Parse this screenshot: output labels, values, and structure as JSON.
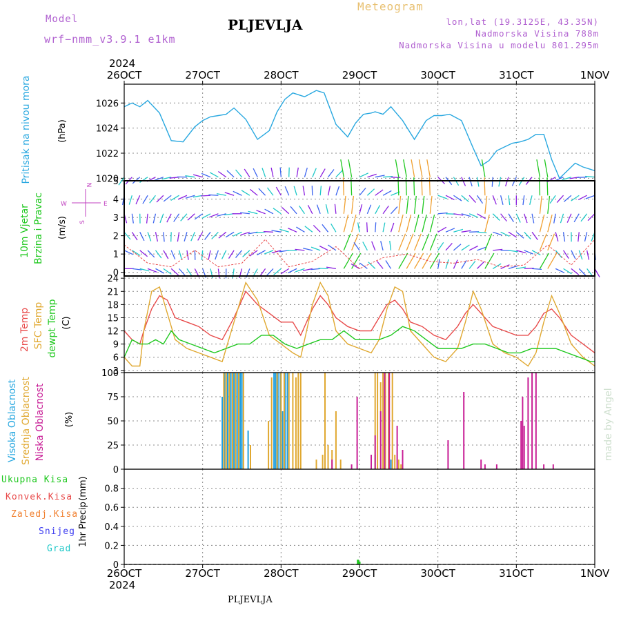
{
  "header": {
    "model_label": "Model",
    "model_name": "wrf−nmm_v3.9.1  e1km",
    "station": "PLJEVLJA",
    "product": "Meteogram",
    "lonlat": "lon,lat (19.3125E, 43.35N)",
    "elevation": "Nadmorska Visina 788m",
    "model_elevation": "Nadmorska Visina u modelu 801.295m"
  },
  "footer": {
    "station": "PLJEVLJA",
    "watermark": "made by Angel"
  },
  "colors": {
    "pressure": "#29a8e0",
    "t2m": "#e84a4a",
    "sfc": "#e0a830",
    "dew": "#1ec81e",
    "high_cloud": "#1e9ee0",
    "mid_cloud": "#e0a830",
    "low_cloud": "#c81e96",
    "total_precip": "#1ec81e",
    "conv": "#e84a4a",
    "frozen": "#f08030",
    "snow": "#3c3cf0",
    "hail": "#1ec8c8",
    "wind_label": "#1ec81e",
    "wind_label2": "#1ec81e",
    "wind_dir": "#c040c0",
    "model_text": "#b060d0"
  },
  "chart_data": {
    "time_axis": {
      "top_year": "2024",
      "bottom_year": "2024",
      "labels": [
        "26OCT",
        "27OCT",
        "28OCT",
        "29OCT",
        "30OCT",
        "31OCT",
        "1NOV"
      ]
    },
    "pressure": {
      "type": "line",
      "ylabel_name": "Pritisak na nivou mora",
      "ylabel_unit": "(hPa)",
      "ylim": [
        1019.8,
        1027.5
      ],
      "yticks": [
        1020,
        1022,
        1024,
        1026
      ],
      "x": [
        0,
        0.1,
        0.2,
        0.3,
        0.45,
        0.6,
        0.75,
        0.9,
        1.0,
        1.1,
        1.2,
        1.3,
        1.4,
        1.55,
        1.7,
        1.85,
        1.95,
        2.05,
        2.15,
        2.3,
        2.45,
        2.55,
        2.7,
        2.85,
        2.95,
        3.05,
        3.15,
        3.2,
        3.3,
        3.4,
        3.55,
        3.7,
        3.85,
        3.95,
        4.05,
        4.15,
        4.3,
        4.45,
        4.55,
        4.65,
        4.75,
        4.85,
        4.95,
        5.05,
        5.15,
        5.25,
        5.35,
        5.45,
        5.55,
        5.65,
        5.75,
        5.85,
        5.95,
        6.0
      ],
      "y": [
        1025.7,
        1026.0,
        1025.7,
        1026.2,
        1025.2,
        1023.0,
        1022.9,
        1024.1,
        1024.6,
        1024.9,
        1025.0,
        1025.1,
        1025.6,
        1024.7,
        1023.1,
        1023.8,
        1025.3,
        1026.3,
        1026.8,
        1026.5,
        1027.0,
        1026.8,
        1024.3,
        1023.3,
        1024.4,
        1025.1,
        1025.2,
        1025.3,
        1025.1,
        1025.7,
        1024.6,
        1023.1,
        1024.6,
        1025.0,
        1025.0,
        1025.1,
        1024.6,
        1022.4,
        1021.0,
        1021.4,
        1022.2,
        1022.5,
        1022.8,
        1022.9,
        1023.1,
        1023.5,
        1023.5,
        1021.5,
        1020.0,
        1020.6,
        1021.2,
        1020.9,
        1020.7,
        1020.6
      ]
    },
    "wind": {
      "type": "other",
      "ylabel_name": "10m Vjetar",
      "ylabel_name2": "Brzina i Pravac",
      "ylabel_unit": "(m/s)",
      "direction_key": "N",
      "direction_key_w": "W",
      "direction_key_e": "E",
      "direction_key_s": "S",
      "ylim": [
        -0.2,
        5
      ],
      "yticks": [
        0,
        1,
        2,
        3,
        4,
        5
      ],
      "speed_x": [
        0,
        0.3,
        0.6,
        0.9,
        1.2,
        1.5,
        1.8,
        2.1,
        2.4,
        2.7,
        3.0,
        3.3,
        3.6,
        3.9,
        4.2,
        4.5,
        4.8,
        5.1,
        5.4,
        5.7,
        6.0
      ],
      "speed_y": [
        1.5,
        0.5,
        0.3,
        1.2,
        0.3,
        0.5,
        1.8,
        0.3,
        0.6,
        1.4,
        0.2,
        0.8,
        1.0,
        0.6,
        0.5,
        0.7,
        0.3,
        0.4,
        1.5,
        0.4,
        1.8
      ]
    },
    "temperature": {
      "type": "line",
      "ylabel_name": "2m Temp",
      "ylabel_name2": "SFC Temp",
      "ylabel_name3": "dewpt Temp",
      "ylabel_unit": "(C)",
      "ylim": [
        2.5,
        24.5
      ],
      "yticks": [
        3,
        6,
        9,
        12,
        15,
        18,
        21,
        24
      ],
      "series": [
        {
          "name": "2m Temp",
          "x": [
            0,
            0.1,
            0.2,
            0.25,
            0.35,
            0.45,
            0.55,
            0.65,
            0.8,
            0.95,
            1.1,
            1.25,
            1.4,
            1.55,
            1.7,
            1.85,
            2.0,
            2.15,
            2.25,
            2.4,
            2.5,
            2.6,
            2.7,
            2.85,
            3.0,
            3.15,
            3.25,
            3.35,
            3.45,
            3.55,
            3.65,
            3.8,
            3.95,
            4.1,
            4.25,
            4.35,
            4.45,
            4.55,
            4.7,
            4.85,
            5.0,
            5.15,
            5.25,
            5.35,
            5.45,
            5.55,
            5.7,
            5.85,
            6.0
          ],
          "y": [
            12,
            10,
            9,
            12,
            17,
            20,
            19,
            15,
            14,
            13,
            11,
            10,
            15,
            21,
            18,
            16,
            14,
            14,
            11,
            17,
            20,
            18,
            15,
            13,
            12,
            12,
            15,
            18,
            19,
            17,
            14,
            13,
            11,
            10,
            13,
            16,
            18,
            16,
            13,
            12,
            11,
            11,
            13,
            16,
            17,
            15,
            11,
            9,
            7
          ]
        },
        {
          "name": "SFC Temp",
          "x": [
            0,
            0.1,
            0.2,
            0.25,
            0.35,
            0.45,
            0.55,
            0.65,
            0.8,
            0.95,
            1.1,
            1.25,
            1.4,
            1.55,
            1.7,
            1.85,
            2.0,
            2.15,
            2.25,
            2.4,
            2.5,
            2.6,
            2.7,
            2.85,
            3.0,
            3.15,
            3.25,
            3.35,
            3.45,
            3.55,
            3.65,
            3.8,
            3.95,
            4.1,
            4.25,
            4.35,
            4.45,
            4.55,
            4.7,
            4.85,
            5.0,
            5.15,
            5.25,
            5.35,
            5.45,
            5.55,
            5.7,
            5.85,
            6.0
          ],
          "y": [
            6,
            4,
            4,
            12,
            21,
            22,
            16,
            10,
            8,
            7,
            6,
            5,
            14,
            23,
            19,
            11,
            9,
            7,
            6,
            18,
            23,
            20,
            12,
            9,
            8,
            7,
            10,
            17,
            22,
            21,
            12,
            9,
            6,
            5,
            8,
            14,
            21,
            17,
            9,
            7,
            6,
            4,
            7,
            14,
            20,
            16,
            9,
            6,
            4
          ]
        },
        {
          "name": "dewpt Temp",
          "x": [
            0,
            0.1,
            0.2,
            0.3,
            0.4,
            0.5,
            0.6,
            0.7,
            0.85,
            1.0,
            1.15,
            1.3,
            1.45,
            1.6,
            1.75,
            1.9,
            2.05,
            2.2,
            2.35,
            2.5,
            2.65,
            2.8,
            2.95,
            3.1,
            3.25,
            3.4,
            3.55,
            3.7,
            3.85,
            4.0,
            4.15,
            4.3,
            4.45,
            4.6,
            4.75,
            4.9,
            5.05,
            5.2,
            5.35,
            5.5,
            5.65,
            5.8,
            5.95,
            6.0
          ],
          "y": [
            6,
            10,
            9,
            9,
            10,
            9,
            12,
            10,
            9,
            8,
            7,
            8,
            9,
            9,
            11,
            11,
            9,
            8,
            9,
            10,
            10,
            12,
            10,
            10,
            10,
            11,
            13,
            12,
            10,
            8,
            8,
            8,
            9,
            9,
            8,
            7,
            7,
            8,
            8,
            8,
            7,
            6,
            5,
            5
          ]
        }
      ]
    },
    "cloud": {
      "type": "bar",
      "ylabel_name": "Visoka Oblacnost",
      "ylabel_name2": "Srednja Oblacnost",
      "ylabel_name3": "Niska Oblacnost",
      "ylabel_unit": "(%)",
      "ylim": [
        0,
        100
      ],
      "yticks": [
        0,
        25,
        50,
        75,
        100
      ],
      "series": [
        {
          "name": "Visoka Oblacnost",
          "x": [
            1.25,
            1.28,
            1.32,
            1.36,
            1.4,
            1.44,
            1.48,
            1.5,
            1.58,
            1.91,
            1.93,
            1.96,
            1.99,
            2.02,
            2.05,
            2.08,
            3.2,
            3.4
          ],
          "y": [
            75,
            100,
            100,
            100,
            100,
            100,
            100,
            100,
            40,
            100,
            100,
            100,
            100,
            60,
            100,
            100,
            15,
            10
          ]
        },
        {
          "name": "Srednja Oblacnost",
          "x": [
            1.27,
            1.3,
            1.34,
            1.38,
            1.42,
            1.46,
            1.52,
            1.61,
            1.84,
            1.88,
            1.95,
            2.0,
            2.04,
            2.1,
            2.15,
            2.19,
            2.22,
            2.25,
            2.45,
            2.53,
            2.56,
            2.6,
            2.65,
            2.7,
            2.76,
            3.2,
            3.23,
            3.27,
            3.3,
            3.33,
            3.37,
            3.42,
            3.45,
            3.5,
            3.53
          ],
          "y": [
            100,
            100,
            100,
            100,
            100,
            100,
            100,
            25,
            50,
            95,
            100,
            100,
            100,
            100,
            100,
            95,
            100,
            100,
            10,
            15,
            100,
            25,
            20,
            60,
            10,
            100,
            100,
            90,
            100,
            100,
            100,
            100,
            15,
            10,
            5
          ]
        },
        {
          "name": "Niska Oblacnost",
          "x": [
            2.65,
            2.9,
            2.97,
            3.15,
            3.2,
            3.27,
            3.32,
            3.38,
            3.48,
            3.55,
            4.13,
            4.33,
            4.55,
            4.6,
            4.75,
            5.06,
            5.08,
            5.1,
            5.15,
            5.2,
            5.25,
            5.35,
            5.47
          ],
          "y": [
            10,
            5,
            75,
            15,
            35,
            60,
            100,
            100,
            45,
            20,
            30,
            80,
            10,
            5,
            5,
            50,
            75,
            45,
            95,
            100,
            100,
            5,
            5
          ]
        }
      ]
    },
    "precip": {
      "type": "bar",
      "ylabel_name": "1hr Precip",
      "ylabel_unit": "(mm)",
      "legend": [
        "Ukupna Kisa",
        "Konvek.Kisa",
        "Zaledj.Kisa",
        "Snijeg",
        "Grad"
      ],
      "ylim": [
        0,
        1.0
      ],
      "yticks": [
        0,
        0.2,
        0.4,
        0.6,
        0.8
      ],
      "series": [
        {
          "name": "Ukupna Kisa",
          "x": [
            2.98,
            3.0
          ],
          "y": [
            0.05,
            0.03
          ]
        }
      ]
    }
  }
}
